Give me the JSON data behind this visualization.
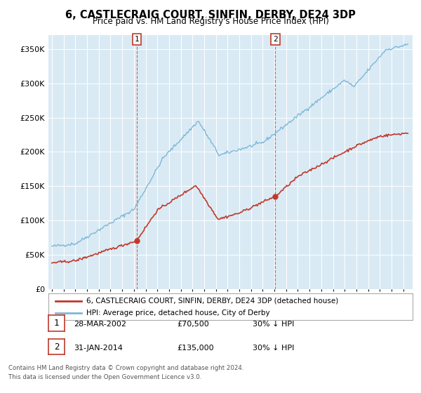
{
  "title": "6, CASTLECRAIG COURT, SINFIN, DERBY, DE24 3DP",
  "subtitle": "Price paid vs. HM Land Registry's House Price Index (HPI)",
  "hpi_color": "#7db8d8",
  "price_color": "#c0392b",
  "marker_color": "#c0392b",
  "plot_bg_color": "#daeaf4",
  "ylim": [
    0,
    370000
  ],
  "yticks": [
    0,
    50000,
    100000,
    150000,
    200000,
    250000,
    300000,
    350000
  ],
  "ytick_labels": [
    "£0",
    "£50K",
    "£100K",
    "£150K",
    "£200K",
    "£250K",
    "£300K",
    "£350K"
  ],
  "sale1_x": 2002.23,
  "sale1_price": 70500,
  "sale1_date_label": "28-MAR-2002",
  "sale1_label": "£70,500",
  "sale1_note": "30% ↓ HPI",
  "sale2_x": 2014.08,
  "sale2_price": 135000,
  "sale2_date_label": "31-JAN-2014",
  "sale2_label": "£135,000",
  "sale2_note": "30% ↓ HPI",
  "legend_line1": "6, CASTLECRAIG COURT, SINFIN, DERBY, DE24 3DP (detached house)",
  "legend_line2": "HPI: Average price, detached house, City of Derby",
  "footer1": "Contains HM Land Registry data © Crown copyright and database right 2024.",
  "footer2": "This data is licensed under the Open Government Licence v3.0.",
  "xmin": 1994.7,
  "xmax": 2025.8
}
